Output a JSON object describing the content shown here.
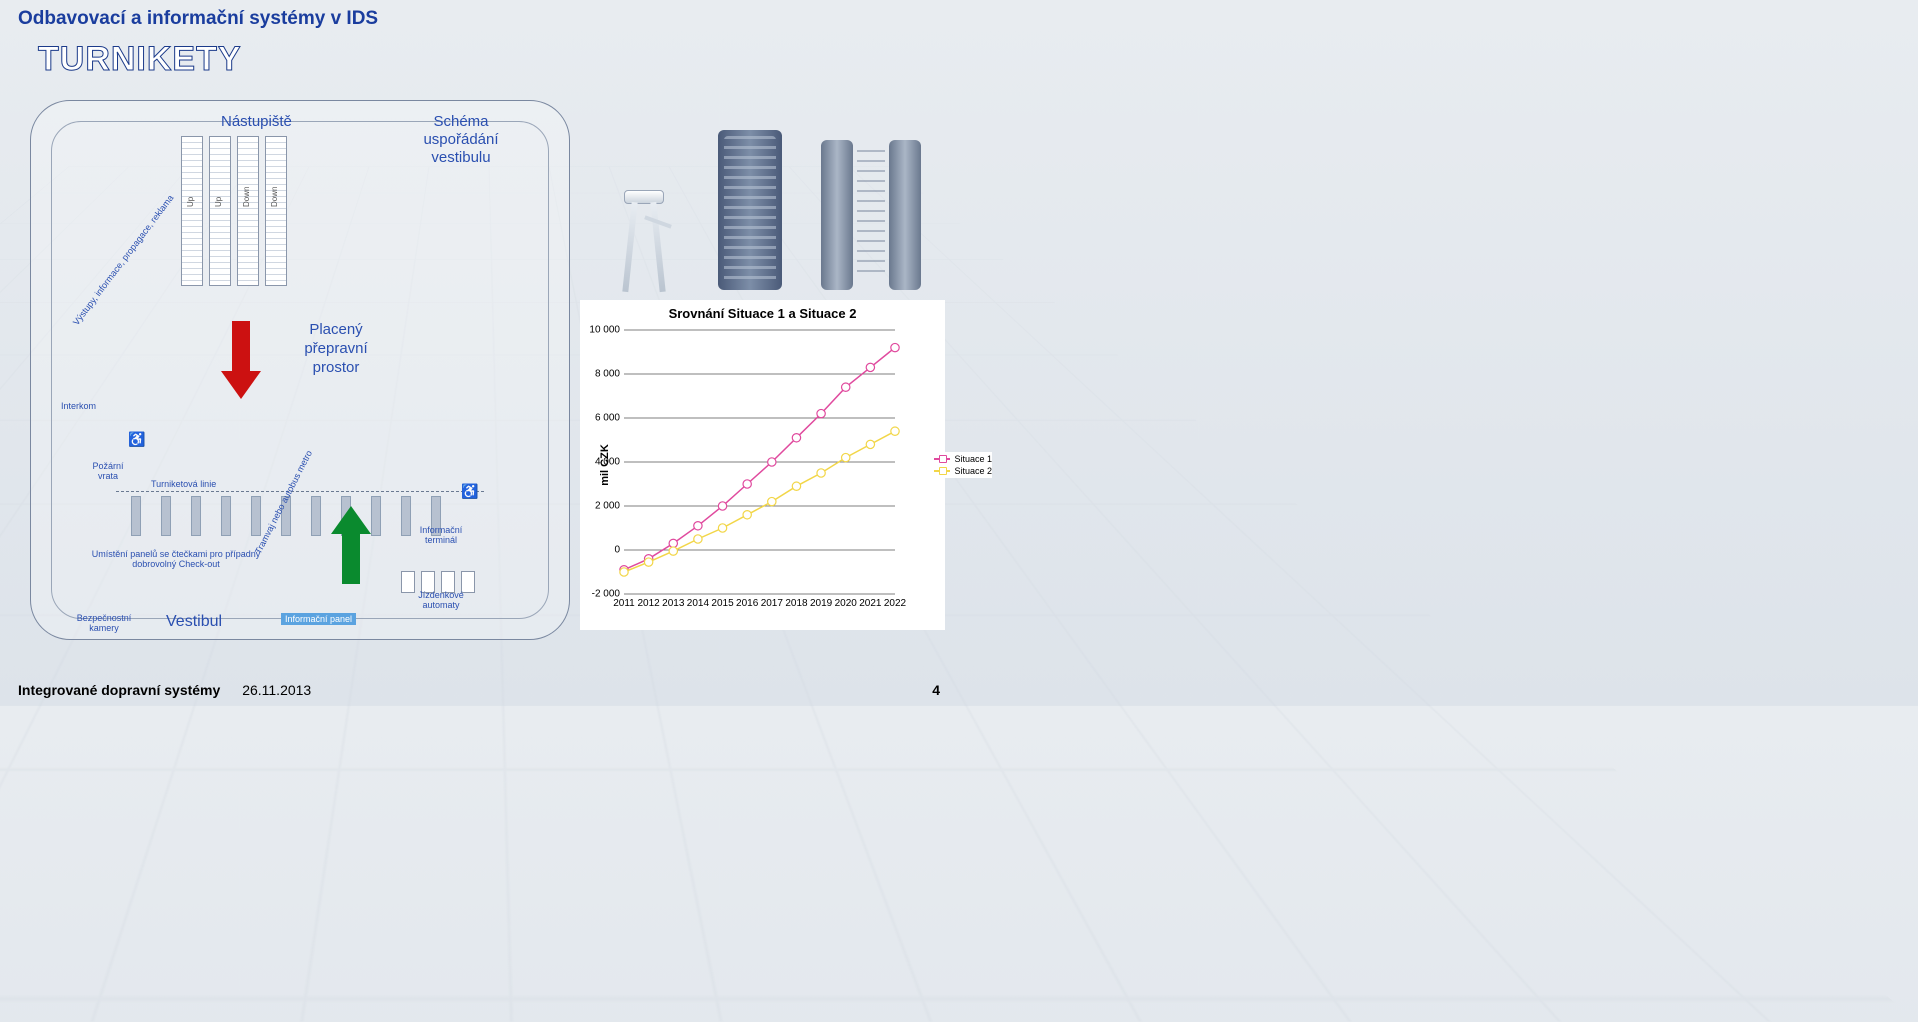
{
  "header": {
    "title_small": "Odbavovací a informační systémy v IDS",
    "title_small_color": "#1a3d9e",
    "title_big": "TURNIKETY"
  },
  "schematic": {
    "nastupiste": "Nástupiště",
    "schema": "Schéma uspořádání vestibulu",
    "placeny": "Placený přepravní prostor",
    "interkom": "Interkom",
    "pozarni": "Požární vrata",
    "turniketova": "Turniketová linie",
    "info_terminal": "Informační terminál",
    "umisteni": "Umístění panelů se čtečkami pro případný dobrovolný Check-out",
    "jizdenkove": "Jízdenkové automaty",
    "info_panel": "Informační panel",
    "bezpecnostni": "Bezpečnostní kamery",
    "vestibul": "Vestibul",
    "diag": "Výstupy, informace, propagace, reklama",
    "diag2": "Tramvaj nebo autobus metro"
  },
  "escalators": {
    "up": "Up",
    "down": "Down"
  },
  "chart": {
    "type": "line",
    "title": "Srovnání Situace 1 a Situace 2",
    "ylabel": "mil CZK",
    "ylim": [
      -2000,
      10000
    ],
    "ytick_step": 2000,
    "yticks": [
      "-2 000",
      "0",
      "2 000",
      "4 000",
      "6 000",
      "8 000",
      "10 000"
    ],
    "x_categories": [
      "2011",
      "2012",
      "2013",
      "2014",
      "2015",
      "2016",
      "2017",
      "2018",
      "2019",
      "2020",
      "2021",
      "2022"
    ],
    "series": [
      {
        "name": "Situace 1",
        "color": "#e04a9e",
        "values": [
          -900,
          -400,
          300,
          1100,
          2000,
          3000,
          4000,
          5100,
          6200,
          7400,
          8300,
          9200
        ]
      },
      {
        "name": "Situace 2",
        "color": "#f2d648",
        "values": [
          -1000,
          -550,
          -50,
          500,
          1000,
          1600,
          2200,
          2900,
          3500,
          4200,
          4800,
          5400
        ]
      }
    ],
    "grid_color": "#000000",
    "background_color": "#ffffff",
    "marker_fill": "#ffffff",
    "marker_size": 5,
    "line_width": 1.5,
    "title_fontsize": 13,
    "label_fontsize": 11,
    "tick_fontsize": 10
  },
  "footer": {
    "text": "Integrované dopravní systémy",
    "date": "26.11.2013",
    "page": "4"
  }
}
